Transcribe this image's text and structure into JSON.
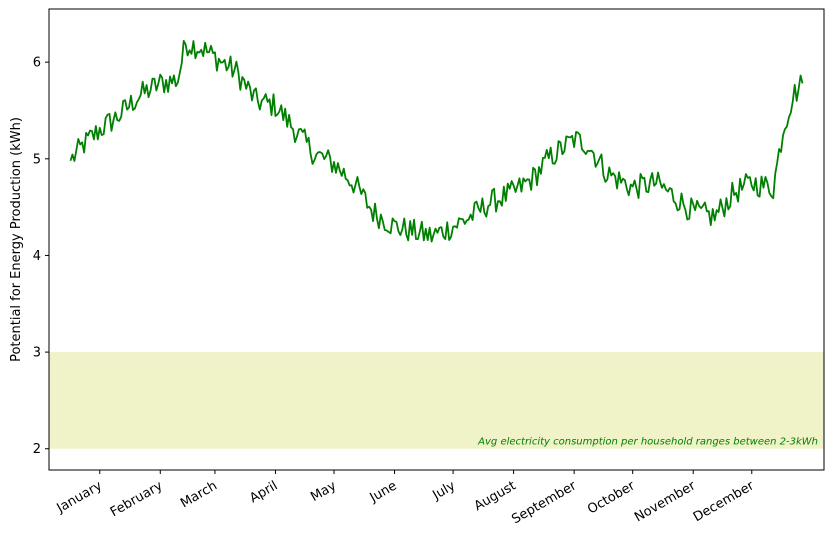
{
  "chart_data": {
    "type": "line",
    "title": "",
    "xlabel": "",
    "ylabel": "Potential for Energy Production (kWh)",
    "ylim": [
      1.78,
      6.55
    ],
    "yticks": [
      2,
      3,
      4,
      5,
      6
    ],
    "x_range_days": [
      -26,
      371
    ],
    "month_ticks": [
      {
        "label": "January",
        "day": 0
      },
      {
        "label": "February",
        "day": 31
      },
      {
        "label": "March",
        "day": 59
      },
      {
        "label": "April",
        "day": 90
      },
      {
        "label": "May",
        "day": 120
      },
      {
        "label": "June",
        "day": 151
      },
      {
        "label": "July",
        "day": 181
      },
      {
        "label": "August",
        "day": 212
      },
      {
        "label": "September",
        "day": 243
      },
      {
        "label": "October",
        "day": 273
      },
      {
        "label": "November",
        "day": 304
      },
      {
        "label": "December",
        "day": 334
      }
    ],
    "shaded_band": {
      "ymin": 2,
      "ymax": 3,
      "color": "#f0f2c8",
      "annotation": "Avg electricity consumption per household ranges between 2-3kWh",
      "annotation_color": "#008000"
    },
    "series": [
      {
        "color": "#008000",
        "keypoints": [
          {
            "day": -15,
            "value": 4.98
          },
          {
            "day": -8,
            "value": 5.15
          },
          {
            "day": 0,
            "value": 5.3
          },
          {
            "day": 10,
            "value": 5.45
          },
          {
            "day": 20,
            "value": 5.65
          },
          {
            "day": 31,
            "value": 5.78
          },
          {
            "day": 40,
            "value": 5.82
          },
          {
            "day": 44,
            "value": 6.2
          },
          {
            "day": 52,
            "value": 6.15
          },
          {
            "day": 59,
            "value": 6.05
          },
          {
            "day": 70,
            "value": 5.9
          },
          {
            "day": 80,
            "value": 5.6
          },
          {
            "day": 90,
            "value": 5.55
          },
          {
            "day": 100,
            "value": 5.3
          },
          {
            "day": 110,
            "value": 5.05
          },
          {
            "day": 120,
            "value": 4.95
          },
          {
            "day": 130,
            "value": 4.75
          },
          {
            "day": 140,
            "value": 4.45
          },
          {
            "day": 151,
            "value": 4.3
          },
          {
            "day": 160,
            "value": 4.25
          },
          {
            "day": 170,
            "value": 4.2
          },
          {
            "day": 181,
            "value": 4.3
          },
          {
            "day": 190,
            "value": 4.4
          },
          {
            "day": 200,
            "value": 4.55
          },
          {
            "day": 212,
            "value": 4.65
          },
          {
            "day": 222,
            "value": 4.8
          },
          {
            "day": 230,
            "value": 5.0
          },
          {
            "day": 243,
            "value": 5.2
          },
          {
            "day": 250,
            "value": 5.15
          },
          {
            "day": 260,
            "value": 4.85
          },
          {
            "day": 273,
            "value": 4.7
          },
          {
            "day": 285,
            "value": 4.75
          },
          {
            "day": 295,
            "value": 4.6
          },
          {
            "day": 304,
            "value": 4.45
          },
          {
            "day": 315,
            "value": 4.4
          },
          {
            "day": 325,
            "value": 4.65
          },
          {
            "day": 334,
            "value": 4.75
          },
          {
            "day": 345,
            "value": 4.7
          },
          {
            "day": 350,
            "value": 5.3
          },
          {
            "day": 355,
            "value": 5.65
          },
          {
            "day": 360,
            "value": 5.78
          }
        ],
        "noise_amplitude": 0.13
      }
    ]
  }
}
